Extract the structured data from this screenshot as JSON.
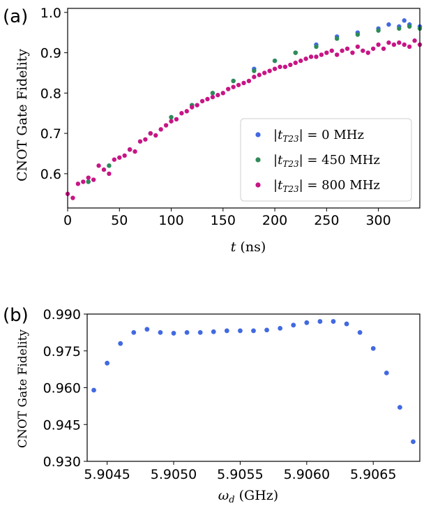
{
  "chart_data": [
    {
      "panel_label": "(a)",
      "type": "scatter",
      "xlabel": "t (ns)",
      "ylabel": "CNOT Gate Fidelity",
      "xlim": [
        0,
        340
      ],
      "ylim": [
        0.515,
        1.01
      ],
      "xticks": [
        "0",
        "50",
        "100",
        "150",
        "200",
        "250",
        "300"
      ],
      "yticks": [
        "0.6",
        "0.7",
        "0.8",
        "0.9",
        "1.0"
      ],
      "legend_position": "lower-right",
      "series": [
        {
          "name": "|t_T23| = 0 MHz",
          "name_parts": [
            "|t",
            "T23",
            "| = 0 MHz"
          ],
          "color": "#4169e1",
          "x": [
            20,
            40,
            60,
            80,
            100,
            120,
            140,
            160,
            180,
            200,
            220,
            240,
            260,
            280,
            300,
            310,
            320,
            325,
            330,
            340
          ],
          "y": [
            0.58,
            0.62,
            0.66,
            0.7,
            0.74,
            0.77,
            0.8,
            0.83,
            0.86,
            0.88,
            0.9,
            0.92,
            0.94,
            0.95,
            0.96,
            0.97,
            0.965,
            0.98,
            0.97,
            0.965
          ]
        },
        {
          "name": "|t_T23| = 450 MHz",
          "name_parts": [
            "|t",
            "T23",
            "| = 450 MHz"
          ],
          "color": "#2e8b57",
          "x": [
            20,
            40,
            60,
            80,
            100,
            120,
            140,
            160,
            180,
            200,
            220,
            240,
            260,
            280,
            300,
            320,
            330,
            340
          ],
          "y": [
            0.58,
            0.62,
            0.66,
            0.7,
            0.74,
            0.77,
            0.8,
            0.83,
            0.855,
            0.88,
            0.9,
            0.915,
            0.935,
            0.945,
            0.955,
            0.96,
            0.965,
            0.96
          ]
        },
        {
          "name": "|t_T23| = 800 MHz",
          "name_parts": [
            "|t",
            "T23",
            "| = 800 MHz"
          ],
          "color": "#c71585",
          "x": [
            0,
            5,
            10,
            15,
            20,
            25,
            30,
            35,
            40,
            45,
            50,
            55,
            60,
            65,
            70,
            75,
            80,
            85,
            90,
            95,
            100,
            105,
            110,
            115,
            120,
            125,
            130,
            135,
            140,
            145,
            150,
            155,
            160,
            165,
            170,
            175,
            180,
            185,
            190,
            195,
            200,
            205,
            210,
            215,
            220,
            225,
            230,
            235,
            240,
            245,
            250,
            255,
            260,
            265,
            270,
            275,
            280,
            285,
            290,
            295,
            300,
            305,
            310,
            315,
            320,
            325,
            330,
            335,
            340
          ],
          "y": [
            0.55,
            0.54,
            0.575,
            0.58,
            0.59,
            0.585,
            0.62,
            0.61,
            0.6,
            0.635,
            0.64,
            0.645,
            0.66,
            0.655,
            0.68,
            0.685,
            0.7,
            0.695,
            0.71,
            0.72,
            0.73,
            0.735,
            0.75,
            0.755,
            0.765,
            0.77,
            0.78,
            0.785,
            0.79,
            0.795,
            0.8,
            0.81,
            0.815,
            0.82,
            0.825,
            0.83,
            0.84,
            0.845,
            0.85,
            0.855,
            0.86,
            0.865,
            0.865,
            0.87,
            0.875,
            0.88,
            0.885,
            0.89,
            0.89,
            0.895,
            0.9,
            0.905,
            0.895,
            0.905,
            0.91,
            0.9,
            0.915,
            0.905,
            0.9,
            0.91,
            0.92,
            0.91,
            0.925,
            0.92,
            0.925,
            0.92,
            0.915,
            0.93,
            0.92
          ]
        }
      ]
    },
    {
      "panel_label": "(b)",
      "type": "scatter",
      "xlabel": "ω_d (GHz)",
      "ylabel": "CNOT Gate Fidelity",
      "xlim": [
        5.90435,
        5.90685
      ],
      "ylim": [
        0.93,
        0.99
      ],
      "xticks": [
        5.9045,
        5.905,
        5.9055,
        5.906,
        5.9065
      ],
      "xtick_labels": [
        "5.9045",
        "5.9050",
        "5.9055",
        "5.9060",
        "5.9065"
      ],
      "yticks": [
        0.93,
        0.945,
        0.96,
        0.975,
        0.99
      ],
      "ytick_labels": [
        "0.930",
        "0.945",
        "0.960",
        "0.975",
        "0.990"
      ],
      "series": [
        {
          "color": "#4169e1",
          "x": [
            5.9044,
            5.9045,
            5.9046,
            5.9047,
            5.9048,
            5.9049,
            5.905,
            5.9051,
            5.9052,
            5.9053,
            5.9054,
            5.9055,
            5.9056,
            5.9057,
            5.9058,
            5.9059,
            5.906,
            5.9061,
            5.9062,
            5.9063,
            5.9064,
            5.9065,
            5.9066,
            5.9067,
            5.9068
          ],
          "y": [
            0.959,
            0.97,
            0.978,
            0.9825,
            0.9838,
            0.9825,
            0.9822,
            0.9825,
            0.9825,
            0.9828,
            0.9832,
            0.9832,
            0.9832,
            0.9835,
            0.9842,
            0.9855,
            0.9865,
            0.987,
            0.987,
            0.986,
            0.9825,
            0.976,
            0.966,
            0.952,
            0.938
          ]
        }
      ]
    }
  ]
}
